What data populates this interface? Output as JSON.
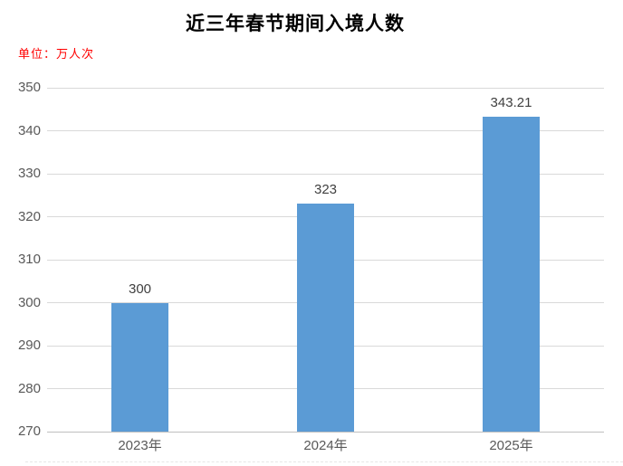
{
  "page": {
    "title": "近三年春节期间入境人数",
    "unit_label": "单位：万人次"
  },
  "chart_data": {
    "type": "bar",
    "title": "近三年春节期间入境人数",
    "unit": "万人次",
    "categories": [
      "2023年",
      "2024年",
      "2025年"
    ],
    "values": [
      300,
      323,
      343.21
    ],
    "data_labels": [
      "300",
      "323",
      "343.21"
    ],
    "ylim": [
      270,
      350
    ],
    "ytick_step": 10,
    "ytick_labels": [
      "270",
      "280",
      "290",
      "300",
      "310",
      "320",
      "330",
      "340",
      "350"
    ],
    "xlabel": "",
    "ylabel": "",
    "legend": "none",
    "grid": "horizontal",
    "colors": {
      "bar_fill": "#5B9BD5",
      "gridline": "#D9D9D9",
      "axis_line": "#BFBFBF",
      "tick_label": "#595959",
      "x_label": "#595959",
      "data_label": "#404040",
      "title": "#000000",
      "unit_label": "#FF0000",
      "background": "#FFFFFF"
    }
  }
}
